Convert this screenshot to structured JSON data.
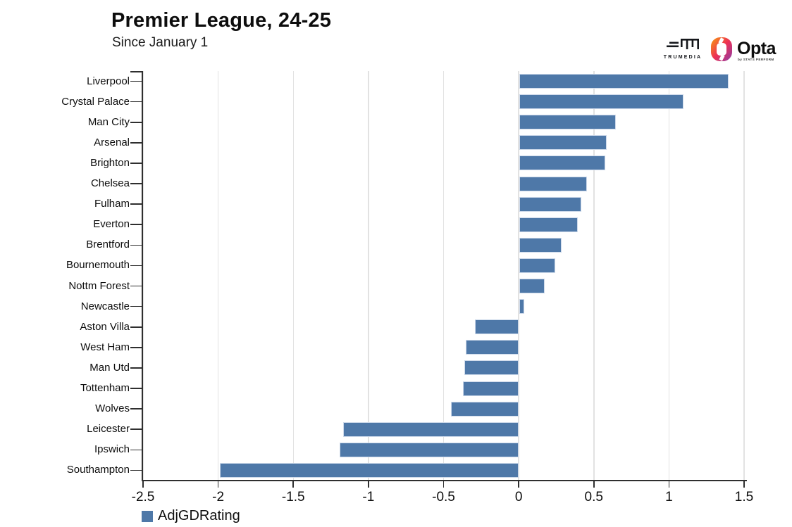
{
  "header": {
    "title": "Premier League, 24-25",
    "subtitle": "Since January 1"
  },
  "branding": {
    "trumedia_label": "TRUMEDIA",
    "opta_label": "Opta",
    "opta_sublabel": "by STATS PERFORM"
  },
  "chart_data": {
    "type": "bar",
    "orientation": "horizontal",
    "title": "Premier League, 24-25",
    "subtitle": "Since January 1",
    "categories": [
      "Liverpool",
      "Crystal Palace",
      "Man City",
      "Arsenal",
      "Brighton",
      "Chelsea",
      "Fulham",
      "Everton",
      "Brentford",
      "Bournemouth",
      "Nottm Forest",
      "Newcastle",
      "Aston Villa",
      "West Ham",
      "Man Utd",
      "Tottenham",
      "Wolves",
      "Leicester",
      "Ipswich",
      "Southampton"
    ],
    "series": [
      {
        "name": "AdjGDRating",
        "values": [
          1.39,
          1.09,
          0.64,
          0.58,
          0.57,
          0.45,
          0.41,
          0.39,
          0.28,
          0.24,
          0.17,
          0.03,
          -0.29,
          -0.35,
          -0.36,
          -0.37,
          -0.45,
          -1.17,
          -1.19,
          -1.99
        ]
      }
    ],
    "xlabel": "",
    "ylabel": "",
    "xlim": [
      -2.5,
      1.5
    ],
    "x_ticks": [
      -2.5,
      -2,
      -1.5,
      -1,
      -0.5,
      0,
      0.5,
      1,
      1.5
    ],
    "x_tick_labels": [
      "-2.5",
      "-2",
      "-1.5",
      "-1",
      "-0.5",
      "0",
      "0.5",
      "1",
      "1.5"
    ],
    "grid": true,
    "legend_position": "bottom-left",
    "legend": [
      {
        "label": "AdjGDRating",
        "color": "#4e78a8"
      }
    ],
    "bar_color": "#4e78a8",
    "bar_border_color": "#cdd9ea",
    "gridline_color": "#e2e2e2",
    "axis_color": "#2f2f2f"
  }
}
